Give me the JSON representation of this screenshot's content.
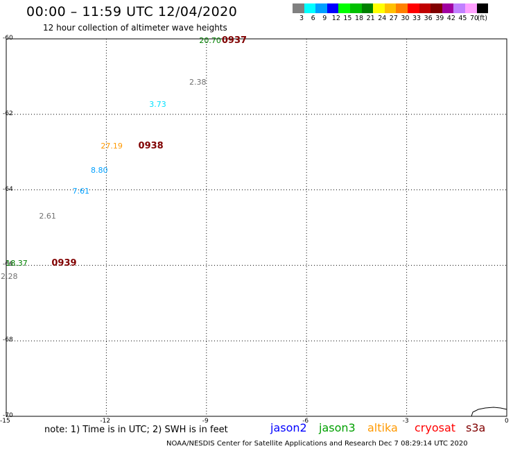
{
  "header": {
    "title": "00:00 – 11:59 UTC 12/04/2020",
    "subtitle": "12 hour collection of altimeter wave heights"
  },
  "colorbar": {
    "colors": [
      "#808080",
      "#00ffff",
      "#00a0ff",
      "#0000ff",
      "#00ff00",
      "#00c000",
      "#008000",
      "#ffff00",
      "#ffc000",
      "#ff8000",
      "#ff0000",
      "#c00000",
      "#800000",
      "#a000a0",
      "#c080ff",
      "#ffa0ff",
      "#000000"
    ],
    "labels": [
      "3",
      "6",
      "9",
      "12",
      "15",
      "18",
      "21",
      "24",
      "27",
      "30",
      "33",
      "36",
      "39",
      "42",
      "45",
      "70",
      "(ft)"
    ]
  },
  "axes": {
    "x_ticks": [
      "-15",
      "-12",
      "-9",
      "-6",
      "-3",
      "0"
    ],
    "y_ticks": [
      "-60",
      "-62",
      "-64",
      "-66",
      "-68",
      "-70"
    ],
    "xlim": [
      -15,
      0
    ],
    "ylim": [
      -70,
      -60
    ],
    "grid": true
  },
  "map_data": {
    "swh_points": [
      {
        "lon": -8.8,
        "lat": -60.05,
        "value": "20.70",
        "color": "#008000"
      },
      {
        "lon": -9.1,
        "lat": -61.15,
        "value": "2.38",
        "color": "#707070"
      },
      {
        "lon": -10.3,
        "lat": -61.75,
        "value": "3.73",
        "color": "#00e0ff"
      },
      {
        "lon": -11.75,
        "lat": -62.85,
        "value": "27.19",
        "color": "#ff9900"
      },
      {
        "lon": -12.05,
        "lat": -63.5,
        "value": "8.80",
        "color": "#00a0ff"
      },
      {
        "lon": -12.6,
        "lat": -64.05,
        "value": "7.61",
        "color": "#00a0ff"
      },
      {
        "lon": -13.6,
        "lat": -64.7,
        "value": "2.61",
        "color": "#707070"
      },
      {
        "lon": -14.6,
        "lat": -65.95,
        "value": "18.37",
        "color": "#008000"
      },
      {
        "lon": -14.75,
        "lat": -66.3,
        "value": "2.28",
        "color": "#707070"
      }
    ],
    "time_labels": [
      {
        "lon": -8.5,
        "lat": -60.05,
        "text": "0937",
        "color": "#800000"
      },
      {
        "lon": -11.0,
        "lat": -62.85,
        "text": "0938",
        "color": "#800000"
      },
      {
        "lon": -13.6,
        "lat": -65.95,
        "text": "0939",
        "color": "#800000"
      }
    ]
  },
  "note": "note:  1) Time is in UTC;  2) SWH is in feet",
  "satellites": [
    {
      "name": "jason2",
      "color": "#0000ff"
    },
    {
      "name": "jason3",
      "color": "#00a000"
    },
    {
      "name": "altika",
      "color": "#ff9900"
    },
    {
      "name": "cryosat",
      "color": "#ff0000"
    },
    {
      "name": "s3a",
      "color": "#800000"
    }
  ],
  "footer": "NOAA/NESDIS Center for Satellite Applications and Research    Dec  7 08:29:14 UTC 2020"
}
